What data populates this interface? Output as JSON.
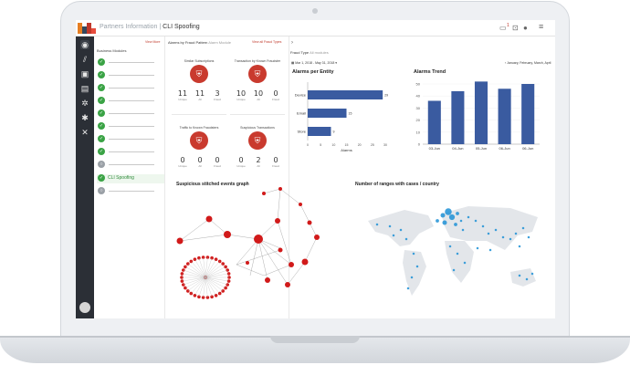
{
  "topbar": {
    "breadcrumb_parent": "Partners Information",
    "breadcrumb_sep": "|",
    "breadcrumb_current": "CLI Spoofing",
    "notif_count": "1"
  },
  "modules": {
    "title": "Business Modules",
    "view_more": "View More",
    "active_label": "CLI Spoofing"
  },
  "center": {
    "header": "Alarms by Fraud Pattern",
    "header_sub": "Alarm Module",
    "link": "View all Fraud Types",
    "cards": [
      {
        "title": "Similar Subscriptions",
        "icon": "⛨",
        "values": [
          {
            "n": "11",
            "l": "Unique"
          },
          {
            "n": "11",
            "l": "All"
          },
          {
            "n": "3",
            "l": "Fraud"
          }
        ]
      },
      {
        "title": "Transaction by Known Fraudster",
        "icon": "⛨",
        "values": [
          {
            "n": "10",
            "l": "Unique"
          },
          {
            "n": "10",
            "l": "All"
          },
          {
            "n": "0",
            "l": "Fraud"
          }
        ]
      },
      {
        "title": "Traffic to Known Fraudsters",
        "icon": "⛨",
        "values": [
          {
            "n": "0",
            "l": "Unique"
          },
          {
            "n": "0",
            "l": "All"
          },
          {
            "n": "0",
            "l": "Fraud"
          }
        ]
      },
      {
        "title": "Suspicious Transactions",
        "icon": "⛨",
        "values": [
          {
            "n": "0",
            "l": "Unique"
          },
          {
            "n": "2",
            "l": "All"
          },
          {
            "n": "0",
            "l": "Fraud"
          }
        ]
      }
    ]
  },
  "filters": {
    "fraud_type_label": "Fraud Type",
    "fraud_type_value": "All modules",
    "date_range": "Mar 1, 2018 - May 31, 2018",
    "range_link": "January, February, March, April"
  },
  "chart_data": [
    {
      "type": "bar",
      "orientation": "horizontal",
      "title": "Alarms per Entity",
      "categories": [
        "Device",
        "Email",
        "Store"
      ],
      "values": [
        29,
        15,
        9
      ],
      "xlabel": "Alarms",
      "xlim": [
        0,
        30
      ],
      "xticks": [
        "0",
        "5",
        "10",
        "15",
        "20",
        "25",
        "30"
      ]
    },
    {
      "type": "bar",
      "title": "Alarms Trend",
      "categories": [
        "03-Jun",
        "04-Jun",
        "05-Jun",
        "06-Jun",
        "06-Jun"
      ],
      "values": [
        36,
        44,
        52,
        46,
        50
      ],
      "ylim": [
        0,
        50
      ],
      "yticks": [
        "0",
        "10",
        "20",
        "30",
        "40",
        "50"
      ]
    }
  ],
  "graph": {
    "title": "Suspicious stitched events graph"
  },
  "map": {
    "title": "Number of ranges with cases / country"
  },
  "colors": {
    "accent": "#c93a2e",
    "bar": "#3a5ba0",
    "map_dot": "#1e90d6",
    "green": "#3aa345"
  }
}
